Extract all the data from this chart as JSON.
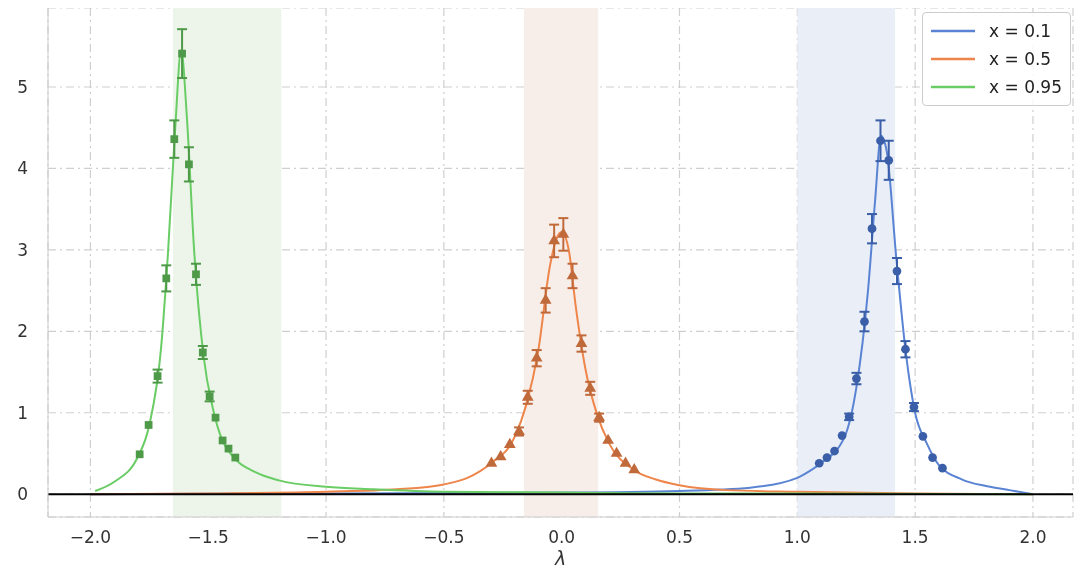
{
  "chart_data": {
    "type": "line",
    "xlabel": "λ",
    "xlim": [
      -2.18,
      2.17
    ],
    "ylim": [
      -0.28,
      5.97
    ],
    "xticks": [
      {
        "value": -2,
        "label": "−2.0"
      },
      {
        "value": -1.5,
        "label": "−1.5"
      },
      {
        "value": -1,
        "label": "−1.0"
      },
      {
        "value": -0.5,
        "label": "−0.5"
      },
      {
        "value": 0,
        "label": "0.0"
      },
      {
        "value": 0.5,
        "label": "0.5"
      },
      {
        "value": 1,
        "label": "1.0"
      },
      {
        "value": 1.5,
        "label": "1.5"
      },
      {
        "value": 2,
        "label": "2.0"
      }
    ],
    "yticks": [
      0,
      1,
      2,
      3,
      4,
      5
    ],
    "grid": true,
    "legend": "top right",
    "ref_lines": [
      {
        "axis": "y",
        "value": 0,
        "color": "#000000"
      }
    ],
    "bands": [
      {
        "axis": "x",
        "from": -1.65,
        "to": -1.19,
        "color": "#edf5eb"
      },
      {
        "axis": "x",
        "from": -0.16,
        "to": 0.155,
        "color": "#f8eee9"
      },
      {
        "axis": "x",
        "from": 1.0,
        "to": 1.415,
        "color": "#e9eef7"
      }
    ],
    "series": [
      {
        "name": "x = 0.1",
        "color": "#5a84d3",
        "marker": "none",
        "x": [
          -2,
          -1,
          0,
          0.5,
          0.8,
          1.0,
          1.05,
          1.1,
          1.2,
          1.25,
          1.3,
          1.33,
          1.355,
          1.38,
          1.42,
          1.46,
          1.5,
          1.55,
          1.6,
          1.7,
          1.8,
          1.9,
          2.0
        ],
        "values": [
          0,
          0.01,
          0.02,
          0.04,
          0.08,
          0.2,
          0.28,
          0.38,
          0.7,
          1.3,
          2.5,
          3.6,
          4.4,
          4.2,
          2.9,
          1.75,
          1.0,
          0.62,
          0.36,
          0.18,
          0.1,
          0.05,
          0
        ]
      },
      {
        "name": "x = 0.5",
        "color": "#ee854a",
        "marker": "none",
        "x": [
          -2,
          -1.5,
          -1,
          -0.7,
          -0.5,
          -0.4,
          -0.3,
          -0.2,
          -0.15,
          -0.1,
          -0.05,
          -0.02,
          0,
          0.03,
          0.06,
          0.1,
          0.15,
          0.2,
          0.3,
          0.4,
          0.5,
          0.7,
          1.0,
          1.5,
          2.0
        ],
        "values": [
          0,
          0.01,
          0.03,
          0.06,
          0.12,
          0.2,
          0.38,
          0.7,
          1.1,
          1.75,
          2.8,
          3.15,
          3.22,
          3.0,
          2.3,
          1.55,
          0.98,
          0.63,
          0.31,
          0.18,
          0.11,
          0.05,
          0.03,
          0.01,
          0
        ]
      },
      {
        "name": "x = 0.95",
        "color": "#6acc64",
        "marker": "none",
        "x": [
          -1.98,
          -1.9,
          -1.8,
          -1.75,
          -1.7,
          -1.67,
          -1.64,
          -1.615,
          -1.59,
          -1.56,
          -1.52,
          -1.48,
          -1.44,
          -1.4,
          -1.3,
          -1.2,
          -1.0,
          -0.8,
          -0.5,
          0,
          0.5,
          1,
          2
        ],
        "values": [
          0.04,
          0.15,
          0.45,
          0.85,
          1.8,
          3.0,
          4.5,
          5.45,
          4.6,
          3.0,
          1.7,
          1.05,
          0.66,
          0.48,
          0.27,
          0.17,
          0.09,
          0.06,
          0.03,
          0.02,
          0.01,
          0.01,
          0
        ]
      },
      {
        "type": "scatter",
        "color": "#3a5ea8",
        "marker": "circle",
        "x": [
          1.093,
          1.126,
          1.158,
          1.19,
          1.22,
          1.251,
          1.285,
          1.317,
          1.353,
          1.388,
          1.423,
          1.459,
          1.495,
          1.533,
          1.574,
          1.616
        ],
        "values": [
          0.38,
          0.45,
          0.53,
          0.72,
          0.95,
          1.42,
          2.12,
          3.26,
          4.34,
          4.1,
          2.74,
          1.78,
          1.07,
          0.71,
          0.45,
          0.32
        ],
        "errors": [
          null,
          null,
          null,
          null,
          0.04,
          0.07,
          0.12,
          0.18,
          0.25,
          0.24,
          0.16,
          0.1,
          0.05,
          null,
          null,
          null
        ]
      },
      {
        "type": "scatter",
        "color": "#c0693a",
        "marker": "triangle",
        "x": [
          -0.298,
          -0.259,
          -0.22,
          -0.181,
          -0.144,
          -0.106,
          -0.068,
          -0.032,
          0.007,
          0.046,
          0.084,
          0.121,
          0.159,
          0.197,
          0.233,
          0.271,
          0.308
        ],
        "values": [
          0.38,
          0.46,
          0.61,
          0.77,
          1.19,
          1.67,
          2.38,
          3.11,
          3.19,
          2.68,
          1.85,
          1.3,
          0.94,
          0.66,
          0.5,
          0.38,
          0.3
        ],
        "errors": [
          null,
          null,
          null,
          0.05,
          0.08,
          0.1,
          0.15,
          0.2,
          0.2,
          0.15,
          0.1,
          0.08,
          0.05,
          null,
          null,
          null,
          null
        ]
      },
      {
        "type": "scatter",
        "color": "#4e9a48",
        "marker": "square",
        "x": [
          -1.791,
          -1.753,
          -1.715,
          -1.678,
          -1.644,
          -1.611,
          -1.582,
          -1.552,
          -1.523,
          -1.494,
          -1.469,
          -1.439,
          -1.414,
          -1.385
        ],
        "values": [
          0.49,
          0.85,
          1.45,
          2.65,
          4.36,
          5.41,
          4.05,
          2.7,
          1.74,
          1.2,
          0.94,
          0.66,
          0.56,
          0.45
        ],
        "errors": [
          null,
          null,
          0.08,
          0.16,
          0.23,
          0.3,
          0.21,
          0.13,
          0.08,
          0.06,
          null,
          null,
          null,
          null
        ]
      }
    ]
  }
}
